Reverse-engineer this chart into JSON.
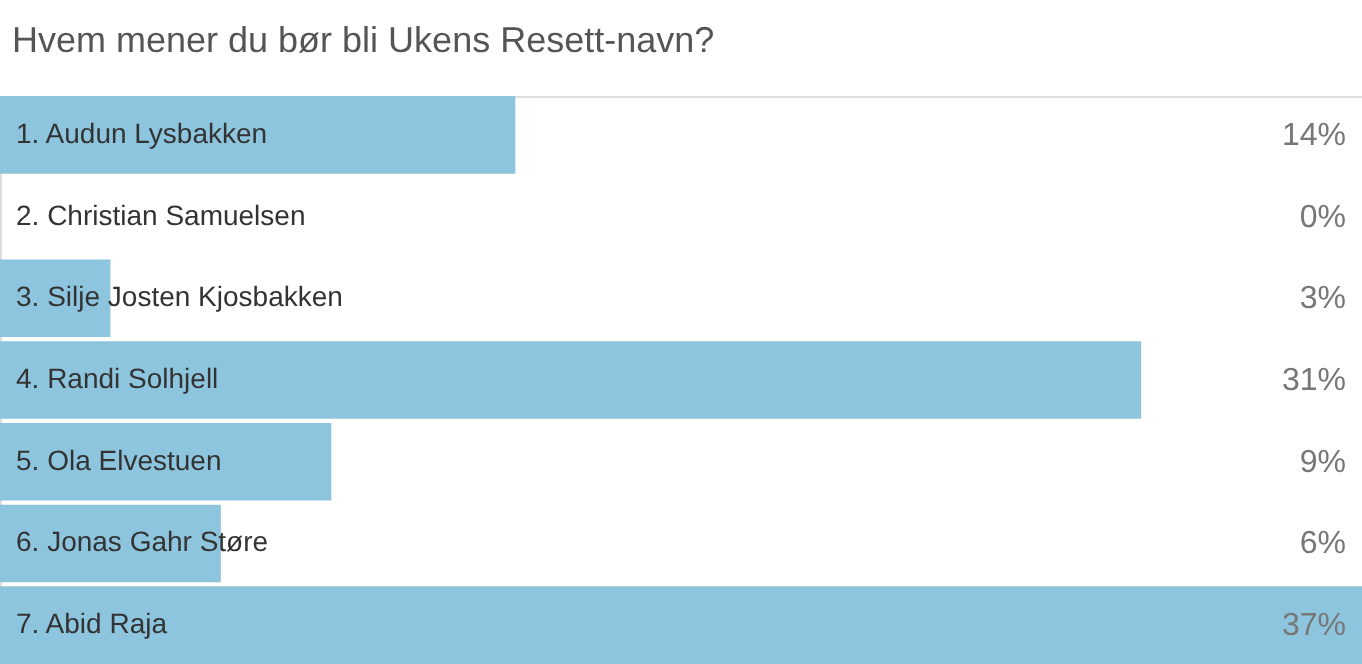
{
  "chart_data": {
    "type": "bar",
    "orientation": "horizontal",
    "title": "Hvem mener du bør bli Ukens Resett-navn?",
    "categories": [
      "1. Audun Lysbakken",
      "2. Christian Samuelsen",
      "3. Silje Josten Kjosbakken",
      "4. Randi Solhjell",
      "5. Ola Elvestuen",
      "6. Jonas Gahr Støre",
      "7. Abid Raja"
    ],
    "values": [
      14,
      0,
      3,
      31,
      9,
      6,
      37
    ],
    "value_labels": [
      "14%",
      "0%",
      "3%",
      "31%",
      "9%",
      "6%",
      "37%"
    ],
    "color": "#8ec5de"
  }
}
